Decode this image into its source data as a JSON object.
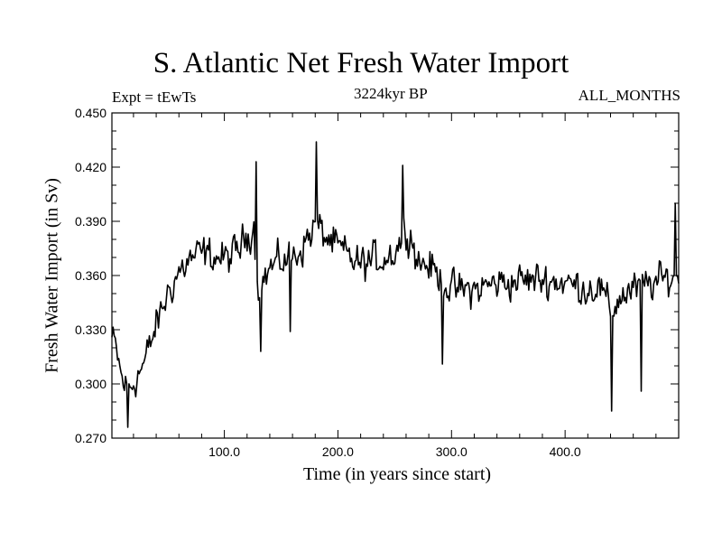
{
  "chart_data": {
    "type": "line",
    "title": "S. Atlantic Net Fresh Water Import",
    "subtitle": "3224kyr BP",
    "left_label": "Expt = tEwTs",
    "right_label": "ALL_MONTHS",
    "xlabel": "Time (in years since start)",
    "ylabel": "Fresh Water Import (in Sv)",
    "xlim": [
      1,
      500
    ],
    "ylim": [
      0.27,
      0.45
    ],
    "x_ticks": [
      100,
      200,
      300,
      400
    ],
    "x_tick_labels": [
      "100.0",
      "200.0",
      "300.0",
      "400.0"
    ],
    "y_ticks": [
      0.27,
      0.3,
      0.33,
      0.36,
      0.39,
      0.42,
      0.45
    ],
    "y_tick_labels": [
      "0.270",
      "0.300",
      "0.330",
      "0.360",
      "0.390",
      "0.420",
      "0.450"
    ],
    "series": [
      {
        "name": "Net fresh water import",
        "trend_x": [
          1,
          5,
          10,
          15,
          20,
          30,
          40,
          50,
          60,
          70,
          80,
          90,
          100,
          110,
          120,
          126,
          130,
          140,
          150,
          160,
          170,
          180,
          190,
          200,
          210,
          220,
          230,
          240,
          250,
          260,
          265,
          270,
          280,
          290,
          300,
          320,
          340,
          360,
          380,
          400,
          420,
          430,
          440,
          450,
          460,
          470,
          480,
          490,
          500
        ],
        "trend_y": [
          0.325,
          0.318,
          0.302,
          0.297,
          0.301,
          0.312,
          0.332,
          0.35,
          0.362,
          0.369,
          0.372,
          0.371,
          0.369,
          0.372,
          0.382,
          0.388,
          0.352,
          0.364,
          0.368,
          0.37,
          0.377,
          0.388,
          0.381,
          0.375,
          0.37,
          0.366,
          0.368,
          0.37,
          0.373,
          0.386,
          0.382,
          0.368,
          0.366,
          0.358,
          0.352,
          0.352,
          0.356,
          0.357,
          0.358,
          0.356,
          0.353,
          0.354,
          0.34,
          0.349,
          0.352,
          0.355,
          0.356,
          0.358,
          0.362
        ],
        "noise_amplitude": 0.012,
        "events": [
          {
            "x": 15,
            "y": 0.276
          },
          {
            "x": 128,
            "y": 0.423
          },
          {
            "x": 132,
            "y": 0.318
          },
          {
            "x": 158,
            "y": 0.329
          },
          {
            "x": 181,
            "y": 0.434
          },
          {
            "x": 257,
            "y": 0.421
          },
          {
            "x": 292,
            "y": 0.311
          },
          {
            "x": 441,
            "y": 0.285
          },
          {
            "x": 467,
            "y": 0.296
          },
          {
            "x": 497,
            "y": 0.4
          }
        ]
      }
    ]
  }
}
